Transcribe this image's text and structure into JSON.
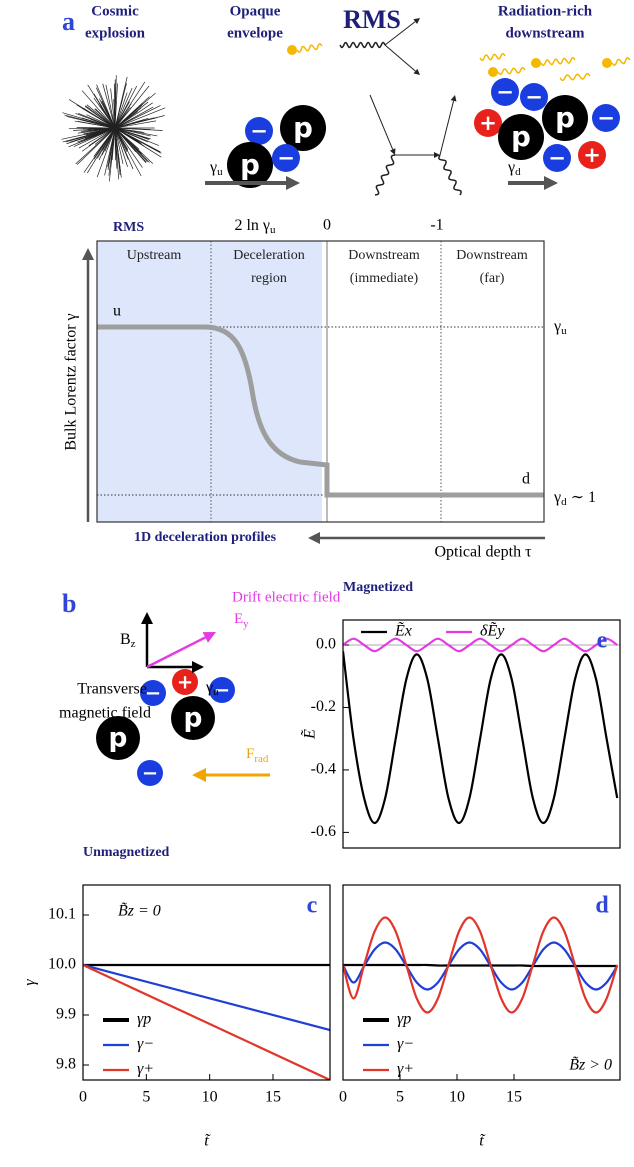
{
  "panel_a": {
    "label": "a",
    "headings": [
      [
        "Cosmic",
        "explosion"
      ],
      [
        "Opaque",
        "envelope"
      ],
      [
        "RMS"
      ],
      [
        "Radiation-rich",
        "downstream"
      ]
    ],
    "gamma_u": {
      "base": "γ",
      "sub": "u"
    },
    "gamma_d": {
      "base": "γ",
      "sub": "d"
    }
  },
  "particles": {
    "proton": "p",
    "electron": "−",
    "positron": "+"
  },
  "profile": {
    "title": "RMS",
    "top_ticks": [
      {
        "base": "2 ln γ",
        "sub": "u"
      },
      "0",
      "-1"
    ],
    "regions": [
      [
        "Upstream"
      ],
      [
        "Deceleration",
        "region"
      ],
      [
        "Downstream",
        "(immediate)"
      ],
      [
        "Downstream",
        "(far)"
      ]
    ],
    "start": "u",
    "end": "d",
    "right_labels": [
      {
        "base": "γ",
        "sub": "u"
      },
      {
        "base": "γ",
        "sub": "d",
        "rest": " ∼ 1"
      }
    ],
    "y_label": "Bulk Lorentz factor γ",
    "footer": "1D deceleration profiles",
    "x_label": "Optical depth τ"
  },
  "panel_b": {
    "label": "b",
    "drift": "Drift electric field",
    "e_field": {
      "base": "E",
      "sub": "y"
    },
    "b_field": {
      "base": "B",
      "sub": "z"
    },
    "transverse": [
      "Transverse",
      "magnetic field"
    ],
    "gamma": {
      "base": "γ",
      "sub": "u"
    },
    "force": {
      "base": "F",
      "sub": "rad"
    }
  },
  "chart_data": [
    {
      "type": "line",
      "panel_label": "e",
      "title": "Magnetized",
      "ylabel": "Ẽ",
      "x": [
        0,
        0.925,
        1.85,
        2.775,
        3.7,
        4.625,
        5.55,
        6.475,
        7.4,
        8.325,
        9.25,
        10.175,
        11.1,
        12.025,
        12.95,
        13.875,
        14.8,
        15.725,
        16.65,
        17.575,
        18.5,
        19.425,
        20.35,
        21.275,
        22.2,
        23.125,
        24.05
      ],
      "series": [
        {
          "name": "Ẽx",
          "color": "#000000",
          "values": [
            -0.02,
            -0.3,
            -0.49,
            -0.57,
            -0.49,
            -0.3,
            -0.11,
            -0.03,
            -0.11,
            -0.3,
            -0.49,
            -0.57,
            -0.49,
            -0.3,
            -0.11,
            -0.03,
            -0.11,
            -0.3,
            -0.49,
            -0.57,
            -0.49,
            -0.3,
            -0.11,
            -0.03,
            -0.11,
            -0.3,
            -0.49
          ]
        },
        {
          "name": "δẼy",
          "color": "#e33be3",
          "values": [
            0,
            0.02,
            0,
            -0.02,
            0,
            0.02,
            0,
            -0.02,
            0,
            0.02,
            0,
            -0.02,
            0,
            0.02,
            0,
            -0.02,
            0,
            0.02,
            0,
            -0.02,
            0,
            0.02,
            0,
            -0.02,
            0,
            0.02,
            0
          ]
        }
      ],
      "xlim": [
        0,
        24.3
      ],
      "ylim": [
        -0.65,
        0.08
      ],
      "yticks": [
        {
          "value": 0,
          "label": "0.0"
        },
        -0.2,
        -0.4,
        -0.6
      ],
      "hline": 0,
      "legend": "upper left"
    },
    {
      "type": "line",
      "panel_label": "c",
      "title": "Unmagnetized",
      "annotation": "B̃z = 0",
      "ylabel": "γ",
      "xlabel": "t̃",
      "x": [
        0,
        19.5
      ],
      "series": [
        {
          "name": "γp",
          "color": "#000000",
          "values": [
            10.0,
            10.0
          ]
        },
        {
          "name": "γ−",
          "color": "#1f3fd6",
          "values": [
            10.0,
            9.87
          ]
        },
        {
          "name": "γ+",
          "color": "#e0362c",
          "values": [
            10.0,
            9.77
          ]
        }
      ],
      "xlim": [
        0,
        19.5
      ],
      "ylim": [
        9.77,
        10.16
      ],
      "xticks": [
        0,
        5,
        10,
        15
      ],
      "yticks": [
        10.1,
        {
          "value": 10.0,
          "label": "10.0"
        },
        9.9,
        9.8
      ],
      "legend": "lower left"
    },
    {
      "type": "line",
      "panel_label": "d",
      "annotation": "B̃z > 0",
      "xlabel": "t̃",
      "x": [
        0,
        0.925,
        1.85,
        2.775,
        3.7,
        4.625,
        5.55,
        6.475,
        7.4,
        8.325,
        9.25,
        10.175,
        11.1,
        12.025,
        12.95,
        13.875,
        14.8,
        15.725,
        16.65,
        17.575,
        18.5,
        19.425,
        20.35,
        21.275,
        22.2,
        23.125,
        24.05
      ],
      "series": [
        {
          "name": "γp",
          "color": "#000000",
          "values": [
            10.0,
            10.0,
            10.0,
            10.0,
            10.0,
            10.0,
            10.0,
            10.0,
            10.0,
            9.999,
            9.999,
            9.999,
            9.999,
            9.999,
            9.999,
            9.999,
            9.999,
            9.999,
            9.998,
            9.998,
            9.998,
            9.998,
            9.998,
            9.998,
            9.998,
            9.998,
            9.998
          ]
        },
        {
          "name": "γ−",
          "color": "#1f3fd6",
          "values": [
            10.0,
            9.965,
            9.998,
            10.031,
            10.045,
            10.031,
            9.998,
            9.965,
            9.951,
            9.965,
            9.998,
            10.031,
            10.045,
            10.031,
            9.998,
            9.965,
            9.951,
            9.965,
            9.998,
            10.031,
            10.045,
            10.031,
            9.998,
            9.965,
            9.951,
            9.965,
            9.998
          ]
        },
        {
          "name": "γ+",
          "color": "#e0362c",
          "values": [
            10.0,
            9.933,
            10.0,
            10.067,
            10.095,
            10.067,
            10.0,
            9.933,
            9.905,
            9.933,
            10.0,
            10.067,
            10.095,
            10.067,
            10.0,
            9.933,
            9.905,
            9.933,
            10.0,
            10.067,
            10.095,
            10.067,
            10.0,
            9.933,
            9.905,
            9.933,
            10.0
          ]
        }
      ],
      "xlim": [
        0,
        24.3
      ],
      "ylim": [
        9.77,
        10.16
      ],
      "xticks": [
        0,
        5,
        10,
        15
      ],
      "legend": "lower left"
    }
  ]
}
